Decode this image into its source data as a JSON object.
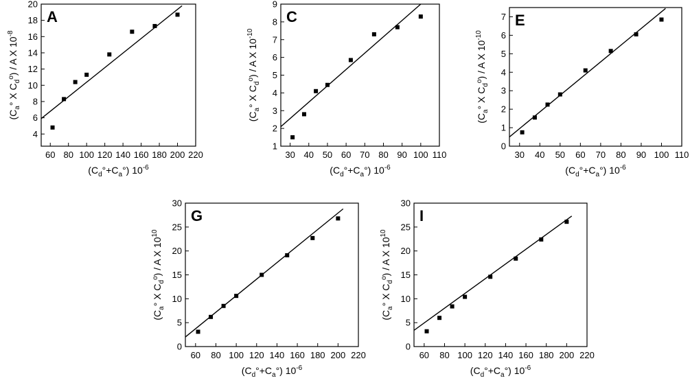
{
  "chart_data": [
    {
      "panel": "A",
      "type": "scatter",
      "x_title": {
        "prefix": "(C",
        "sub1": "d",
        "mid": "°+C",
        "sub2": "a",
        "suffix": "°)  10",
        "sup": "-6"
      },
      "y_title": {
        "prefix": "(C",
        "sub1": "a",
        "mid": "° X C",
        "sub2": "d",
        "sup2": "o",
        "suffix": ") / A  X 10",
        "sup": "-8"
      },
      "xlim": [
        50,
        220
      ],
      "ylim": [
        2.5,
        20
      ],
      "xticks": [
        60,
        80,
        100,
        120,
        140,
        160,
        180,
        200,
        220
      ],
      "yticks": [
        4,
        6,
        8,
        10,
        12,
        14,
        16,
        18,
        20
      ],
      "points": [
        [
          62.5,
          4.8
        ],
        [
          75,
          8.3
        ],
        [
          87.5,
          10.4
        ],
        [
          100,
          11.3
        ],
        [
          125,
          13.8
        ],
        [
          150,
          16.6
        ],
        [
          175,
          17.3
        ],
        [
          200,
          18.7
        ]
      ],
      "fit": [
        [
          50,
          5.9
        ],
        [
          205,
          19.8
        ]
      ]
    },
    {
      "panel": "C",
      "type": "scatter",
      "x_title": {
        "prefix": "(C",
        "sub1": "d",
        "mid": "°+C",
        "sub2": "a",
        "suffix": "°)  10",
        "sup": "-6"
      },
      "y_title": {
        "prefix": "(C",
        "sub1": "a",
        "mid": "° X C",
        "sub2": "d",
        "sup2": "o",
        "suffix": ") / A  X 10",
        "sup": "-10"
      },
      "xlim": [
        25,
        110
      ],
      "ylim": [
        1,
        9
      ],
      "xticks": [
        30,
        40,
        50,
        60,
        70,
        80,
        90,
        100,
        110
      ],
      "yticks": [
        1,
        2,
        3,
        4,
        5,
        6,
        7,
        8,
        9
      ],
      "points": [
        [
          31.3,
          1.5
        ],
        [
          37.5,
          2.8
        ],
        [
          43.8,
          4.1
        ],
        [
          50,
          4.45
        ],
        [
          62.5,
          5.85
        ],
        [
          75,
          7.3
        ],
        [
          87.5,
          7.7
        ],
        [
          100,
          8.3
        ]
      ],
      "fit": [
        [
          25,
          2.1
        ],
        [
          100,
          9.0
        ]
      ]
    },
    {
      "panel": "E",
      "type": "scatter",
      "x_title": {
        "prefix": "(C",
        "sub1": "d",
        "mid": "°+C",
        "sub2": "a",
        "suffix": "°)  10",
        "sup": "-6"
      },
      "y_title": {
        "prefix": "(C",
        "sub1": "a",
        "mid": "° X C",
        "sub2": "d",
        "sup2": "o",
        "suffix": ") / A  X 10",
        "sup": "-10"
      },
      "xlim": [
        25,
        110
      ],
      "ylim": [
        0,
        7.5
      ],
      "xticks": [
        30,
        40,
        50,
        60,
        70,
        80,
        90,
        100,
        110
      ],
      "yticks": [
        0,
        1,
        2,
        3,
        4,
        5,
        6,
        7
      ],
      "points": [
        [
          31.3,
          0.75
        ],
        [
          37.5,
          1.55
        ],
        [
          43.8,
          2.25
        ],
        [
          50,
          2.8
        ],
        [
          62.5,
          4.1
        ],
        [
          75,
          5.15
        ],
        [
          87.5,
          6.05
        ],
        [
          100,
          6.85
        ]
      ],
      "fit": [
        [
          25,
          0.5
        ],
        [
          102,
          7.45
        ]
      ]
    },
    {
      "panel": "G",
      "type": "scatter",
      "x_title": {
        "prefix": "(C",
        "sub1": "d",
        "mid": "°+C",
        "sub2": "a",
        "suffix": "°)  10",
        "sup": "-6"
      },
      "y_title": {
        "prefix": "(C",
        "sub1": "a",
        "mid": "° X C",
        "sub2": "d",
        "sup2": "o",
        "suffix": ") / A  X 10",
        "sup": "10"
      },
      "xlim": [
        50,
        220
      ],
      "ylim": [
        0,
        30
      ],
      "xticks": [
        60,
        80,
        100,
        120,
        140,
        160,
        180,
        200,
        220
      ],
      "yticks": [
        0,
        5,
        10,
        15,
        20,
        25,
        30
      ],
      "points": [
        [
          62.5,
          3.1
        ],
        [
          75,
          6.2
        ],
        [
          87.5,
          8.5
        ],
        [
          100,
          10.6
        ],
        [
          125,
          15.0
        ],
        [
          150,
          19.1
        ],
        [
          175,
          22.7
        ],
        [
          200,
          26.8
        ]
      ],
      "fit": [
        [
          50,
          2.0
        ],
        [
          205,
          28.8
        ]
      ]
    },
    {
      "panel": "I",
      "type": "scatter",
      "x_title": {
        "prefix": "(C",
        "sub1": "d",
        "mid": "°+C",
        "sub2": "a",
        "suffix": "°)  10",
        "sup": "-6"
      },
      "y_title": {
        "prefix": "(C",
        "sub1": "a",
        "mid": "° X C",
        "sub2": "d",
        "sup2": "o",
        "suffix": ") / A  X 10",
        "sup": "10"
      },
      "xlim": [
        50,
        220
      ],
      "ylim": [
        0,
        30
      ],
      "xticks": [
        60,
        80,
        100,
        120,
        140,
        160,
        180,
        200,
        220
      ],
      "yticks": [
        0,
        5,
        10,
        15,
        20,
        25,
        30
      ],
      "points": [
        [
          62.5,
          3.2
        ],
        [
          75,
          6.0
        ],
        [
          87.5,
          8.4
        ],
        [
          100,
          10.4
        ],
        [
          125,
          14.6
        ],
        [
          150,
          18.4
        ],
        [
          175,
          22.4
        ],
        [
          200,
          26.1
        ]
      ],
      "fit": [
        [
          50,
          3.4
        ],
        [
          205,
          27.3
        ]
      ]
    }
  ]
}
